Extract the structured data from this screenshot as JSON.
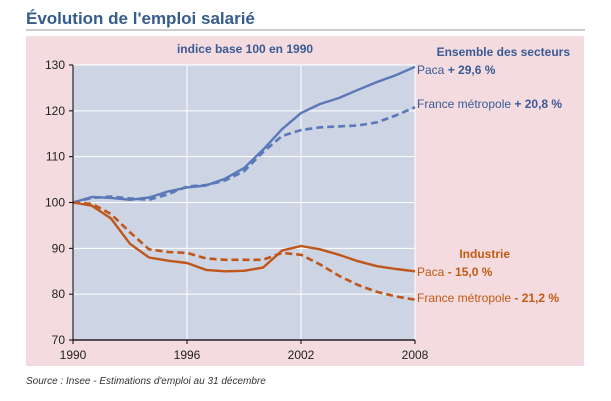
{
  "chart_data": {
    "type": "line",
    "title": "Évolution de l'emploi salarié",
    "subtitle": "indice base 100 en 1990",
    "source": "Source : Insee - Estimations d'emploi au 31 décembre",
    "xlabel": "",
    "ylabel": "",
    "xlim": [
      1990,
      2008
    ],
    "ylim": [
      70,
      130
    ],
    "x_ticks": [
      1990,
      1996,
      2002,
      2008
    ],
    "y_ticks": [
      70,
      80,
      90,
      100,
      110,
      120,
      130
    ],
    "grid": true,
    "groups": [
      {
        "name": "Ensemble des secteurs",
        "color": "#5b78b8",
        "series": [
          {
            "name": "Paca",
            "label_prefix": "Paca",
            "label_value": "+ 29,6 %",
            "dashed": false,
            "x": [
              1990,
              1991,
              1992,
              1993,
              1994,
              1995,
              1996,
              1997,
              1998,
              1999,
              2000,
              2001,
              2002,
              2003,
              2004,
              2005,
              2006,
              2007,
              2008
            ],
            "y": [
              100,
              101.2,
              101.0,
              100.6,
              101.1,
              102.4,
              103.3,
              103.7,
              105.2,
              107.5,
              111.5,
              116.0,
              119.5,
              121.5,
              122.8,
              124.6,
              126.3,
              127.8,
              129.6
            ]
          },
          {
            "name": "France métropole",
            "label_prefix": "France métropole",
            "label_value": "+ 20,8 %",
            "dashed": true,
            "x": [
              1990,
              1991,
              1992,
              1993,
              1994,
              1995,
              1996,
              1997,
              1998,
              1999,
              2000,
              2001,
              2002,
              2003,
              2004,
              2005,
              2006,
              2007,
              2008
            ],
            "y": [
              100,
              101.0,
              101.3,
              100.9,
              100.6,
              101.8,
              103.5,
              103.8,
              104.8,
              106.8,
              111.0,
              114.5,
              115.8,
              116.4,
              116.6,
              116.8,
              117.5,
              119.0,
              120.8
            ]
          }
        ]
      },
      {
        "name": "Industrie",
        "color": "#c0561a",
        "series": [
          {
            "name": "Paca",
            "label_prefix": "Paca",
            "label_value": "- 15,0 %",
            "dashed": false,
            "x": [
              1990,
              1991,
              1992,
              1993,
              1994,
              1995,
              1996,
              1997,
              1998,
              1999,
              2000,
              2001,
              2002,
              2003,
              2004,
              2005,
              2006,
              2007,
              2008
            ],
            "y": [
              100,
              99.3,
              96.5,
              91.0,
              88.0,
              87.3,
              86.8,
              85.3,
              85.0,
              85.1,
              85.8,
              89.5,
              90.5,
              89.8,
              88.6,
              87.2,
              86.1,
              85.5,
              85.0
            ]
          },
          {
            "name": "France métropole",
            "label_prefix": "France métropole",
            "label_value": "- 21,2 %",
            "dashed": true,
            "x": [
              1990,
              1991,
              1992,
              1993,
              1994,
              1995,
              1996,
              1997,
              1998,
              1999,
              2000,
              2001,
              2002,
              2003,
              2004,
              2005,
              2006,
              2007,
              2008
            ],
            "y": [
              100,
              99.7,
              97.5,
              93.5,
              89.8,
              89.2,
              89.0,
              87.8,
              87.5,
              87.5,
              87.5,
              89.0,
              88.6,
              86.5,
              84.0,
              82.0,
              80.5,
              79.5,
              78.8
            ]
          }
        ]
      }
    ]
  }
}
